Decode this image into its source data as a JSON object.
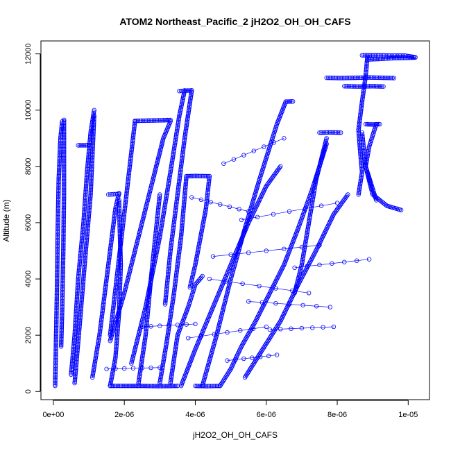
{
  "chart_data": {
    "type": "scatter",
    "title": "ATOM2 Northeast_Pacific_2 jH2O2_OH_OH_CAFS",
    "xlabel": "jH2O2_OH_OH_CAFS",
    "ylabel": "Altitude (m)",
    "xlim": [
      -3.5e-07,
      1.06e-05
    ],
    "ylim": [
      -290,
      12460
    ],
    "grid": false,
    "legend": "none",
    "marker": "open-circle",
    "color": "#0000ff",
    "x_ticks": [
      {
        "value": 0,
        "label": "0e+00"
      },
      {
        "value": 2e-06,
        "label": "2e-06"
      },
      {
        "value": 4e-06,
        "label": "4e-06"
      },
      {
        "value": 6e-06,
        "label": "6e-06"
      },
      {
        "value": 8e-06,
        "label": "8e-06"
      },
      {
        "value": 1e-05,
        "label": "1e-05"
      }
    ],
    "y_ticks": [
      {
        "value": 0,
        "label": "0"
      },
      {
        "value": 2000,
        "label": "2000"
      },
      {
        "value": 4000,
        "label": "4000"
      },
      {
        "value": 6000,
        "label": "6000"
      },
      {
        "value": 8000,
        "label": "8000"
      },
      {
        "value": 10000,
        "label": "10000"
      },
      {
        "value": 12000,
        "label": "12000"
      }
    ],
    "profiles": [
      {
        "x": [
          5e-08,
          7e-08,
          1e-07,
          1.2e-07,
          1.5e-07,
          2e-07,
          2.5e-07,
          3e-07
        ],
        "y": [
          200,
          1500,
          3500,
          5500,
          7500,
          9000,
          9600,
          9650
        ]
      },
      {
        "x": [
          3e-07,
          3e-07,
          2.8e-07,
          2.5e-07,
          2.2e-07
        ],
        "y": [
          9650,
          7000,
          5000,
          3000,
          1600
        ]
      },
      {
        "x": [
          5e-07,
          6e-07,
          7e-07,
          8.5e-07,
          9.5e-07,
          1.05e-06,
          1.15e-06
        ],
        "y": [
          600,
          2000,
          4000,
          6000,
          7800,
          9200,
          10000
        ]
      },
      {
        "x": [
          7e-07,
          9e-07,
          1e-06
        ],
        "y": [
          8750,
          8750,
          8760
        ]
      },
      {
        "x": [
          6e-07,
          7.5e-07,
          9e-07,
          1.05e-06,
          1.15e-06
        ],
        "y": [
          300,
          2500,
          4800,
          7000,
          9800
        ]
      },
      {
        "x": [
          1.1e-06,
          1.3e-06,
          1.45e-06,
          1.6e-06,
          1.75e-06,
          1.85e-06
        ],
        "y": [
          500,
          2000,
          3500,
          5000,
          6500,
          7050
        ]
      },
      {
        "x": [
          1.55e-06,
          1.7e-06,
          1.85e-06
        ],
        "y": [
          7000,
          7010,
          7020
        ]
      },
      {
        "x": [
          1.6e-06,
          1.75e-06,
          1.85e-06,
          1.9e-06,
          1.85e-06
        ],
        "y": [
          200,
          1200,
          2800,
          4500,
          6800
        ]
      },
      {
        "x": [
          1.6e-06,
          2e-06,
          2.5e-06,
          3e-06,
          3.5e-06
        ],
        "y": [
          200,
          200,
          200,
          190,
          200
        ]
      },
      {
        "x": [
          1.6e-06,
          2e-06,
          2.4e-06,
          2.8e-06,
          3.1e-06,
          3.3e-06
        ],
        "y": [
          1800,
          3500,
          5500,
          7500,
          9000,
          9600
        ]
      },
      {
        "x": [
          2.3e-06,
          2.7e-06,
          3.1e-06,
          3.3e-06
        ],
        "y": [
          9620,
          9630,
          9640,
          9650
        ]
      },
      {
        "x": [
          1.6e-06,
          2.3e-06
        ],
        "y": [
          2000,
          9600
        ]
      },
      {
        "x": [
          2.2e-06,
          2.6e-06,
          3e-06,
          3.3e-06,
          3.55e-06,
          3.7e-06
        ],
        "y": [
          1000,
          3000,
          5500,
          7800,
          9800,
          10700
        ]
      },
      {
        "x": [
          3.55e-06,
          3.7e-06,
          3.9e-06
        ],
        "y": [
          10680,
          10690,
          10700
        ]
      },
      {
        "x": [
          3.9e-06,
          3.7e-06,
          3.5e-06,
          3.3e-06,
          3.15e-06
        ],
        "y": [
          10700,
          9000,
          7000,
          5000,
          3100
        ]
      },
      {
        "x": [
          2.4e-06,
          2.6e-06,
          2.75e-06,
          2.9e-06,
          3e-06
        ],
        "y": [
          300,
          2000,
          4000,
          5800,
          7000
        ]
      },
      {
        "x": [
          3e-06,
          3.2e-06,
          3.4e-06,
          3.6e-06,
          3.75e-06
        ],
        "y": [
          300,
          1800,
          3500,
          5500,
          7650
        ]
      },
      {
        "x": [
          3.75e-06,
          4e-06,
          4.4e-06
        ],
        "y": [
          7650,
          7660,
          7650
        ]
      },
      {
        "x": [
          4.4e-06,
          4.3e-06,
          4.15e-06,
          4e-06,
          3.85e-06
        ],
        "y": [
          7650,
          6500,
          5500,
          4500,
          3700
        ]
      },
      {
        "x": [
          3.3e-06,
          3.5e-06,
          3.8e-06,
          4e-06,
          4.2e-06
        ],
        "y": [
          300,
          2000,
          3000,
          3800,
          4100
        ]
      },
      {
        "x": [
          4e-06,
          4.3e-06,
          4.7e-06
        ],
        "y": [
          200,
          190,
          200
        ]
      },
      {
        "x": [
          4.2e-06,
          4.6e-06,
          5e-06,
          5.4e-06,
          5.8e-06,
          6.1e-06,
          6.3e-06,
          6.55e-06
        ],
        "y": [
          200,
          2000,
          4000,
          5800,
          7500,
          8700,
          9500,
          10300
        ]
      },
      {
        "x": [
          6.55e-06,
          6.75e-06
        ],
        "y": [
          10300,
          10310
        ]
      },
      {
        "x": [
          3.6e-06,
          4e-06,
          4.5e-06,
          5e-06,
          5.5e-06,
          6e-06,
          6.4e-06
        ],
        "y": [
          200,
          1500,
          3000,
          4500,
          6000,
          7300,
          8000
        ]
      },
      {
        "x": [
          4.7e-06,
          5e-06,
          5.3e-06,
          5.7e-06,
          6.1e-06,
          6.5e-06,
          6.9e-06,
          7.3e-06,
          7.7e-06
        ],
        "y": [
          200,
          800,
          1600,
          2500,
          3500,
          4500,
          5800,
          7200,
          8800
        ]
      },
      {
        "x": [
          7.5e-06,
          7.8e-06,
          8.1e-06
        ],
        "y": [
          9200,
          9210,
          9200
        ]
      },
      {
        "x": [
          7.7e-06,
          7.4e-06,
          7.2e-06,
          7e-06,
          6.8e-06
        ],
        "y": [
          9000,
          7500,
          6000,
          4500,
          3500
        ]
      },
      {
        "x": [
          5.4e-06,
          5.9e-06,
          6.4e-06,
          6.9e-06,
          7.4e-06,
          7.9e-06,
          8.3e-06
        ],
        "y": [
          500,
          1500,
          2500,
          3800,
          5000,
          6300,
          7000
        ]
      },
      {
        "x": [
          8.6e-06,
          8.7e-06,
          8.65e-06,
          8.6e-06,
          8.7e-06,
          8.8e-06,
          8.85e-06
        ],
        "y": [
          7000,
          7800,
          8500,
          9300,
          10300,
          11200,
          11900
        ]
      },
      {
        "x": [
          8.7e-06,
          9.1e-06,
          9.5e-06,
          9.9e-06,
          1.02e-05
        ],
        "y": [
          11950,
          11950,
          11940,
          11940,
          11880
        ]
      },
      {
        "x": [
          8.85e-06,
          9.2e-06,
          9.6e-06,
          1e-05,
          1.02e-05
        ],
        "y": [
          11800,
          11820,
          11850,
          11860,
          11870
        ]
      },
      {
        "x": [
          7.7e-06,
          8.1e-06,
          8.5e-06,
          8.9e-06,
          9.3e-06,
          9.6e-06
        ],
        "y": [
          11150,
          11140,
          11150,
          11160,
          11150,
          11140
        ]
      },
      {
        "x": [
          8.2e-06,
          8.6e-06,
          9e-06,
          9.3e-06
        ],
        "y": [
          10850,
          10840,
          10850,
          10840
        ]
      },
      {
        "x": [
          8.8e-06,
          9e-06,
          9.2e-06
        ],
        "y": [
          9500,
          9490,
          9500
        ]
      },
      {
        "x": [
          9.1e-06,
          8.9e-06,
          8.8e-06,
          8.95e-06,
          9.1e-06
        ],
        "y": [
          9500,
          8700,
          8000,
          7400,
          6800
        ]
      },
      {
        "x": [
          8.7e-06,
          8.8e-06,
          9e-06,
          9.4e-06,
          9.8e-06
        ],
        "y": [
          9200,
          8000,
          7000,
          6600,
          6450
        ]
      }
    ],
    "connectors": [
      [
        [
          4.4e-06,
          4000
        ],
        [
          7.2e-06,
          3500
        ]
      ],
      [
        [
          4.8e-06,
          8100
        ],
        [
          6.5e-06,
          9000
        ]
      ],
      [
        [
          3.8e-06,
          1900
        ],
        [
          6e-06,
          2300
        ]
      ],
      [
        [
          4.5e-06,
          4800
        ],
        [
          7.5e-06,
          5200
        ]
      ],
      [
        [
          5.3e-06,
          6100
        ],
        [
          8e-06,
          6700
        ]
      ],
      [
        [
          6.1e-06,
          2200
        ],
        [
          7.9e-06,
          2300
        ]
      ],
      [
        [
          1.5e-06,
          800
        ],
        [
          3e-06,
          850
        ]
      ],
      [
        [
          2.5e-06,
          2300
        ],
        [
          4e-06,
          2400
        ]
      ],
      [
        [
          6.8e-06,
          4400
        ],
        [
          8.9e-06,
          4700
        ]
      ],
      [
        [
          4.9e-06,
          1100
        ],
        [
          6.3e-06,
          1300
        ]
      ],
      [
        [
          5.5e-06,
          3200
        ],
        [
          7.8e-06,
          3000
        ]
      ],
      [
        [
          3.9e-06,
          6900
        ],
        [
          5.5e-06,
          6400
        ]
      ]
    ]
  }
}
